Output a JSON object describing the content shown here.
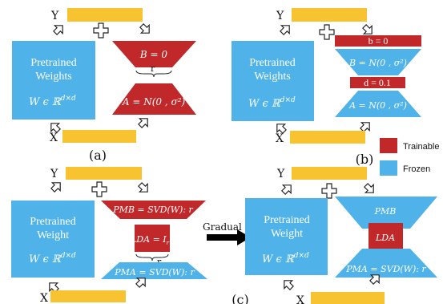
{
  "colors": {
    "trainable": "#c0282a",
    "frozen": "#4fb3ea",
    "bar": "#f7c330",
    "arrow": "#222222"
  },
  "icons": [
    "plus-icon",
    "hollow-arrow-icon",
    "black-arrow-icon"
  ],
  "panel_a": {
    "y_label": "Y",
    "x_label": "X",
    "weights_line1": "Pretrained",
    "weights_line2": "Weights",
    "weights_formula": "W ϵ ℝ",
    "weights_sup": "d×d",
    "b_label": "B = 0",
    "rank_label": "r",
    "a_label": "A = N(0 , σ²)",
    "caption": "(a)"
  },
  "panel_b": {
    "y_label": "Y",
    "x_label": "X",
    "weights_line1": "Pretrained",
    "weights_line2": "Weights",
    "weights_formula": "W ϵ ℝ",
    "weights_sup": "d×d",
    "bias_b_label": "b = 0",
    "b_label": "B = N(0 , σ²)",
    "d_label": "d = 0.1",
    "a_label": "A = N(0 , σ²)",
    "caption": "(b)"
  },
  "legend": {
    "trainable": "Trainable",
    "frozen": "Frozen"
  },
  "panel_c_left": {
    "y_label": "Y",
    "x_label": "X",
    "weights_line1": "Pretrained",
    "weights_line2": "Weight",
    "weights_formula": "W ϵ ℝ",
    "weights_sup": "d×d",
    "pmb_label": "PMB = SVD(W): r",
    "lda_label": "LDA = I",
    "lda_sub": "r",
    "rank_label": "r",
    "pma_label": "PMA = SVD(W): r"
  },
  "transition": {
    "label": "Gradual freezing"
  },
  "panel_c_right": {
    "y_label": "Y",
    "x_label": "X",
    "weights_line1": "Pretrained",
    "weights_line2": "Weight",
    "weights_formula": "W ϵ ℝ",
    "weights_sup": "d×d",
    "pmb_label": "PMB",
    "lda_label": "LDA",
    "pma_label": "PMA = SVD(W): r"
  },
  "caption_c": "(c)"
}
